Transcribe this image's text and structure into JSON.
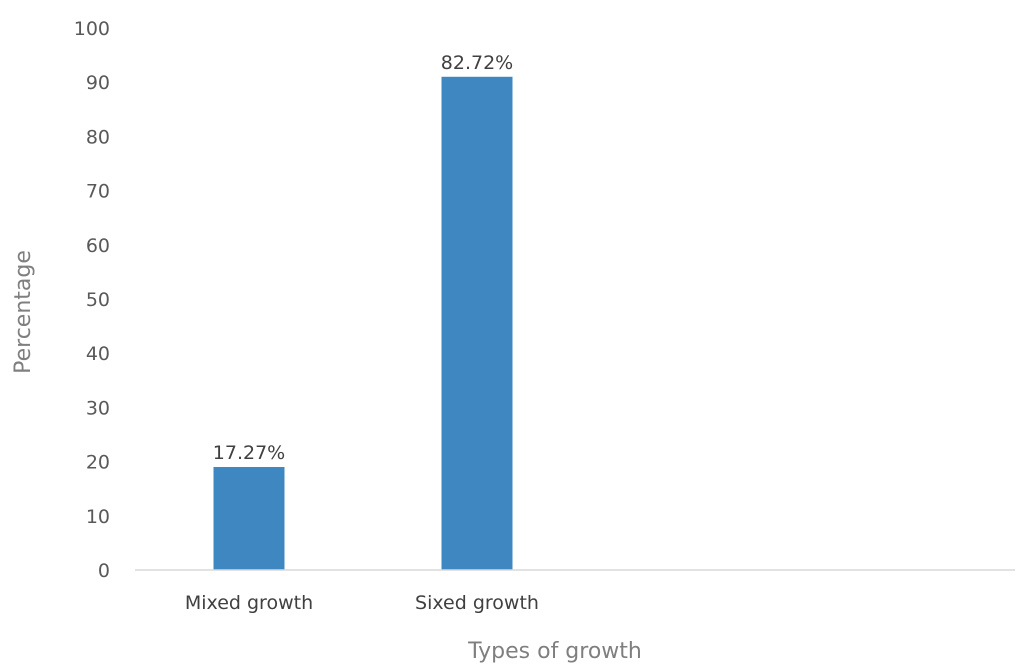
{
  "chart_data": {
    "type": "bar",
    "title": "",
    "xlabel": "Types of growth",
    "ylabel": "Percentage",
    "categories": [
      "Mixed growth",
      "Sixed growth"
    ],
    "values": [
      19,
      91
    ],
    "data_labels": [
      "17.27%",
      "82.72%"
    ],
    "ylim": [
      0,
      100
    ],
    "yticks": [
      0,
      10,
      20,
      30,
      40,
      50,
      60,
      70,
      80,
      90,
      100
    ],
    "bar_color": "#3f87c1",
    "axis_color": "#d9d9d9",
    "grid": false,
    "legend": "none"
  }
}
